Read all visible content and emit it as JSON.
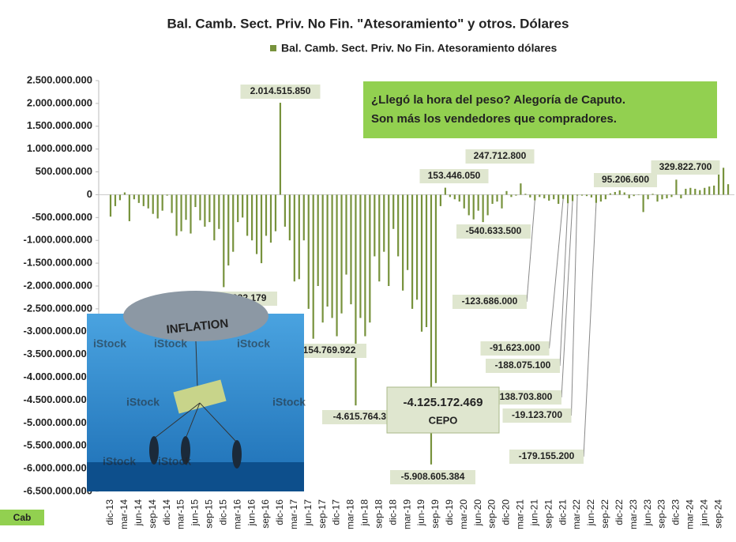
{
  "chart_data": {
    "type": "bar",
    "title": "Bal. Camb. Sect. Priv. No Fin. \"Atesoramiento\"  y otros. Dólares",
    "series": [
      {
        "name": "Bal. Camb. Sect. Priv. No Fin. Atesoramiento dólares",
        "color": "#77923c",
        "values": [
          -480000000,
          -250000000,
          -120000000,
          50000000,
          -580000000,
          -100000000,
          -180000000,
          -250000000,
          -300000000,
          -420000000,
          -520000000,
          -350000000,
          -20000000,
          -400000000,
          -900000000,
          -800000000,
          -550000000,
          -850000000,
          -270000000,
          -560000000,
          -700000000,
          -600000000,
          -1000000000,
          -750000000,
          -2024282179,
          -1550000000,
          -1250000000,
          -600000000,
          -500000000,
          -900000000,
          -1000000000,
          -1300000000,
          -1500000000,
          -900000000,
          -1050000000,
          -800000000,
          2014515850,
          -700000000,
          -1000000000,
          -1900000000,
          -1850000000,
          -1000000000,
          -2500000000,
          -3154769922,
          -2000000000,
          -2800000000,
          -2450000000,
          -2700000000,
          -3100000000,
          -2600000000,
          -1750000000,
          -2400000000,
          -4615764300,
          -2700000000,
          -3100000000,
          -2800000000,
          -1350000000,
          -1900000000,
          -1250000000,
          -2000000000,
          -750000000,
          -1350000000,
          -2100000000,
          -1650000000,
          -2500000000,
          -2300000000,
          -3000000000,
          -2900000000,
          -5908605384,
          -4125172469,
          -250000000,
          153446050,
          -50000000,
          -100000000,
          -150000000,
          -300000000,
          -450000000,
          -540633500,
          -350000000,
          -600000000,
          -450000000,
          -200000000,
          -150000000,
          -300000000,
          80000000,
          -50000000,
          -20000000,
          247712800,
          20000000,
          -60000000,
          -123686000,
          -50000000,
          -80000000,
          -130000000,
          -100000000,
          -200000000,
          -91623000,
          -188075100,
          -138703800,
          -19123700,
          -20000000,
          -30000000,
          -60000000,
          -179155200,
          -150000000,
          -100000000,
          30000000,
          60000000,
          95206600,
          50000000,
          -80000000,
          -30000000,
          -10000000,
          -380000000,
          -100000000,
          20000000,
          -150000000,
          -100000000,
          -80000000,
          -50000000,
          329822700,
          -80000000,
          130000000,
          150000000,
          130000000,
          100000000,
          150000000,
          180000000,
          200000000,
          470000000,
          590000000,
          230000000
        ],
        "value_labels": [
          null,
          null,
          null,
          null,
          null,
          null,
          null,
          null,
          null,
          null,
          null,
          null,
          null,
          null,
          null,
          null,
          null,
          null,
          null,
          null,
          null,
          null,
          null,
          null,
          "-2.024.282.179",
          null,
          null,
          null,
          null,
          null,
          null,
          null,
          null,
          null,
          null,
          null,
          "2.014.515.850",
          null,
          null,
          null,
          null,
          null,
          null,
          "-3.154.769.922",
          null,
          null,
          null,
          null,
          null,
          null,
          null,
          null,
          "-4.615.764.300",
          null,
          null,
          null,
          null,
          null,
          null,
          null,
          null,
          null,
          null,
          null,
          null,
          null,
          null,
          null,
          "-5.908.605.384",
          "-4.125.172.469",
          null,
          "153.446.050",
          null,
          null,
          null,
          null,
          null,
          "-540.633.500",
          null,
          null,
          null,
          null,
          null,
          null,
          null,
          null,
          null,
          "247.712.800",
          null,
          null,
          "-123.686.000",
          null,
          null,
          null,
          null,
          null,
          "-91.623.000",
          "-188.075.100",
          "-138.703.800",
          "-19.123.700",
          null,
          null,
          null,
          "-179.155.200",
          null,
          null,
          null,
          null,
          "95.206.600",
          null,
          null,
          null,
          null,
          null,
          null,
          null,
          null,
          null,
          null,
          null,
          "329.822.700",
          null,
          null,
          null,
          null,
          null,
          null,
          null,
          null,
          null,
          null,
          null
        ]
      }
    ],
    "categories": [
      "dic-13",
      null,
      null,
      "mar-14",
      null,
      null,
      "jun-14",
      null,
      null,
      "sep-14",
      null,
      null,
      "dic-14",
      null,
      null,
      "mar-15",
      null,
      null,
      "jun-15",
      null,
      null,
      "sep-15",
      null,
      null,
      "dic-15",
      null,
      null,
      "mar-16",
      null,
      null,
      "jun-16",
      null,
      null,
      "sep-16",
      null,
      null,
      "dic-16",
      null,
      null,
      "mar-17",
      null,
      null,
      "jun-17",
      null,
      null,
      "sep-17",
      null,
      null,
      "dic-17",
      null,
      null,
      "mar-18",
      null,
      null,
      "jun-18",
      null,
      null,
      "sep-18",
      null,
      null,
      "dic-18",
      null,
      null,
      "mar-19",
      null,
      null,
      "jun-19",
      null,
      null,
      "sep-19",
      null,
      null,
      "dic-19",
      null,
      null,
      "mar-20",
      null,
      null,
      "jun-20",
      null,
      null,
      "sep-20",
      null,
      null,
      "dic-20",
      null,
      null,
      "mar-21",
      null,
      null,
      "jun-21",
      null,
      null,
      "sep-21",
      null,
      null,
      "dic-21",
      null,
      null,
      "mar-22",
      null,
      null,
      "jun-22",
      null,
      null,
      "sep-22",
      null,
      null,
      "dic-22",
      null,
      null,
      "mar-23",
      null,
      null,
      "jun-23",
      null,
      null,
      "sep-23",
      null,
      null,
      "dic-23",
      null,
      null,
      "mar-24",
      null,
      null,
      "jun-24",
      null,
      null,
      "sep-24",
      null,
      null
    ],
    "ylim": [
      -6500000000,
      2500000000
    ],
    "yticks": [
      {
        "value": 2500000000,
        "label": "2.500.000.000"
      },
      {
        "value": 2000000000,
        "label": "2.000.000.000"
      },
      {
        "value": 1500000000,
        "label": "1.500.000.000"
      },
      {
        "value": 1000000000,
        "label": "1.000.000.000"
      },
      {
        "value": 500000000,
        "label": "500.000.000"
      },
      0,
      {
        "value": -500000000,
        "label": "-500.000.000"
      },
      {
        "value": -1000000000,
        "label": "-1.000.000.000"
      },
      {
        "value": -1500000000,
        "label": "-1.500.000.000"
      },
      {
        "value": -2000000000,
        "label": "-2.000.000.000"
      },
      {
        "value": -2500000000,
        "label": "-2.500.000.000"
      },
      {
        "value": -3000000000,
        "label": "-3.000.000.000"
      },
      {
        "value": -3500000000,
        "label": "-3.500.000.000"
      },
      {
        "value": -4000000000,
        "label": "-4.000.000.000"
      },
      {
        "value": -4500000000,
        "label": "-4.500.000.000"
      },
      {
        "value": -5000000000,
        "label": "-5.000.000.000"
      },
      {
        "value": -5500000000,
        "label": "-5.500.000.000"
      },
      {
        "value": -6000000000,
        "label": "-6.000.000.000"
      },
      {
        "value": -6500000000,
        "label": "-6.500.000.000"
      }
    ],
    "grid": false,
    "legend": "top",
    "note": [
      "¿Llegó la hora del peso?  Alegoría de Caputo.",
      "Son más los vendedores que compradores."
    ],
    "cepo_label": "CEPO",
    "image_text": "INFLATION",
    "image_watermark": "iStock",
    "sheet_tab": "Cab"
  }
}
